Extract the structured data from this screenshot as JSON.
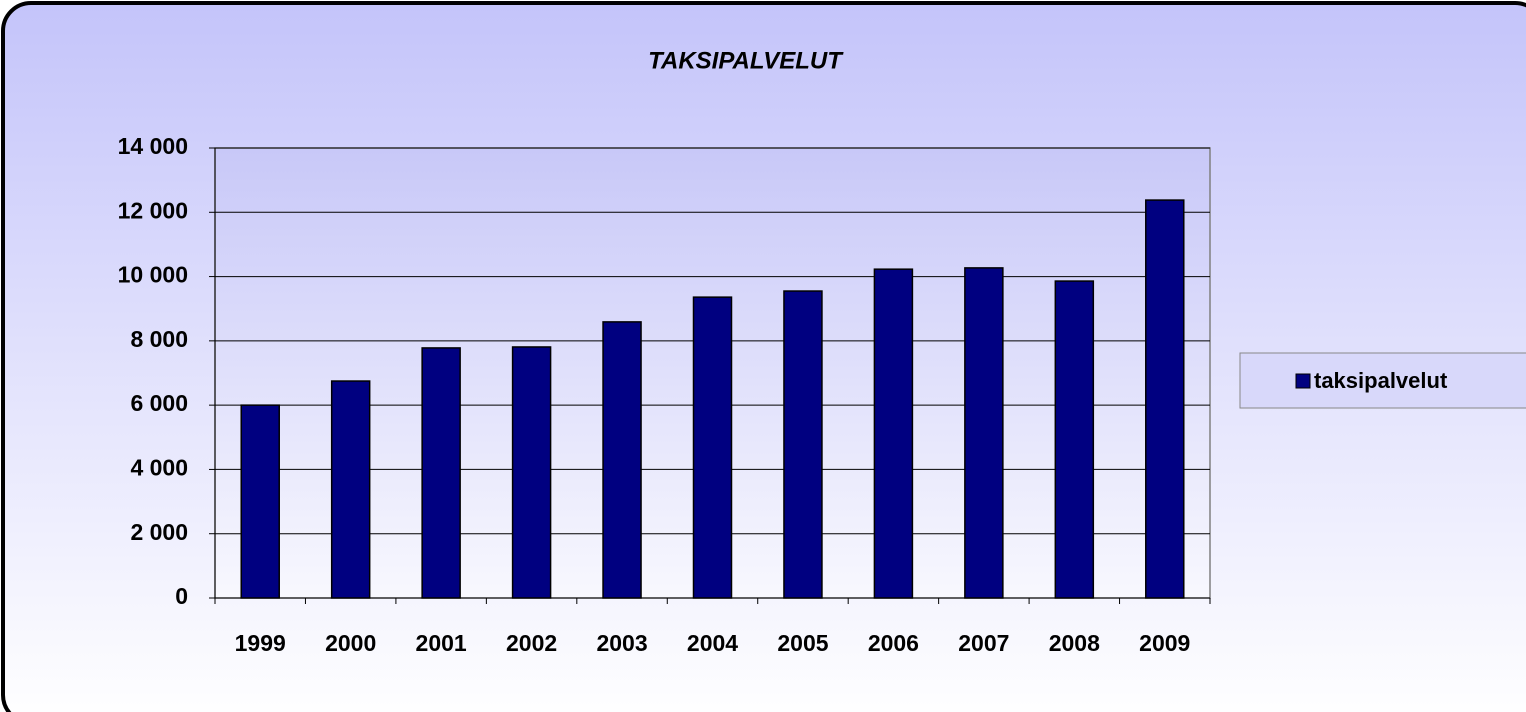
{
  "chart_data": {
    "type": "bar",
    "title": "TAKSIPALVELUT",
    "categories": [
      "1999",
      "2000",
      "2001",
      "2002",
      "2003",
      "2004",
      "2005",
      "2006",
      "2007",
      "2008",
      "2009"
    ],
    "series": [
      {
        "name": "taksipalvelut",
        "color": "#000080",
        "values": [
          6000,
          6750,
          7780,
          7810,
          8590,
          9360,
          9550,
          10230,
          10270,
          9860,
          12380
        ]
      }
    ],
    "ylim": [
      0,
      14000
    ],
    "yticks": [
      0,
      {
        "value": 2000,
        "label": "2 000"
      },
      {
        "value": 4000,
        "label": "4 000"
      },
      {
        "value": 6000,
        "label": "6 000"
      },
      {
        "value": 8000,
        "label": "8 000"
      },
      {
        "value": 10000,
        "label": "10 000"
      },
      {
        "value": 12000,
        "label": "12 000"
      },
      {
        "value": 14000,
        "label": "14 000"
      }
    ],
    "grid": true,
    "legend": "right"
  }
}
